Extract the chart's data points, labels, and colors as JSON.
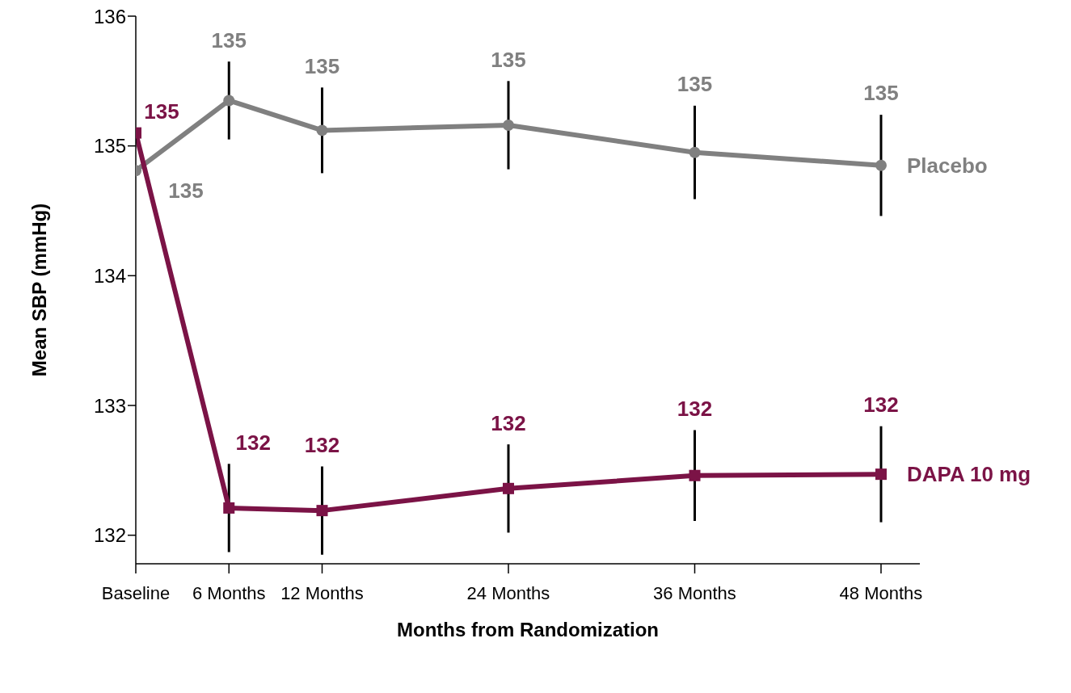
{
  "chart_data": {
    "type": "line",
    "xlabel": "Months from Randomization",
    "ylabel": "Mean SBP (mmHg)",
    "x": [
      0,
      6,
      12,
      24,
      36,
      48
    ],
    "xlim": [
      0,
      50.5
    ],
    "xticks": [
      {
        "value": 0,
        "label": "Baseline"
      },
      {
        "value": 6,
        "label": "6 Months"
      },
      {
        "value": 12,
        "label": "12 Months"
      },
      {
        "value": 24,
        "label": "24 Months"
      },
      {
        "value": 36,
        "label": "36 Months"
      },
      {
        "value": 48,
        "label": "48 Months"
      }
    ],
    "ylim": [
      131.78,
      136
    ],
    "yticks": [
      132,
      133,
      134,
      135,
      136
    ],
    "series": [
      {
        "name": "Placebo",
        "color": "#808080",
        "marker": "circle",
        "values": [
          134.81,
          135.35,
          135.12,
          135.16,
          134.95,
          134.85
        ],
        "errors": [
          null,
          0.3,
          0.33,
          0.34,
          0.36,
          0.39
        ],
        "value_labels": [
          "135",
          "135",
          "135",
          "135",
          "135",
          "135"
        ]
      },
      {
        "name": "DAPA 10 mg",
        "color": "#7b1346",
        "marker": "square",
        "values": [
          135.1,
          132.21,
          132.19,
          132.36,
          132.46,
          132.47
        ],
        "errors": [
          null,
          0.34,
          0.34,
          0.34,
          0.35,
          0.37
        ],
        "value_labels": [
          "135",
          "132",
          "132",
          "132",
          "132",
          "132"
        ]
      }
    ]
  }
}
